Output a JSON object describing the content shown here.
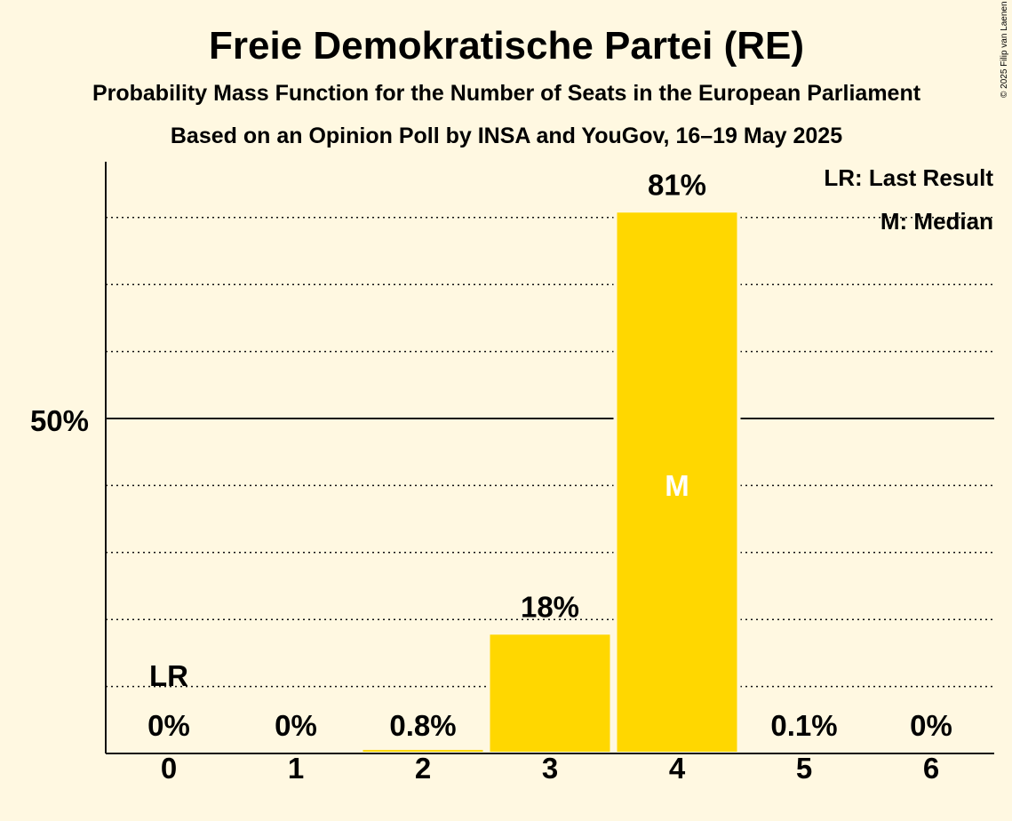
{
  "chart_data": {
    "type": "bar",
    "title": "Freie Demokratische Partei (RE)",
    "subtitle": "Probability Mass Function for the Number of Seats in the European Parliament",
    "subtitle2": "Based on an Opinion Poll by INSA and YouGov, 16–19 May 2025",
    "categories": [
      "0",
      "1",
      "2",
      "3",
      "4",
      "5",
      "6"
    ],
    "values": [
      0,
      0,
      0.8,
      18,
      81,
      0.1,
      0
    ],
    "value_labels": [
      "0%",
      "0%",
      "0.8%",
      "18%",
      "81%",
      "0.1%",
      "0%"
    ],
    "ylim": [
      0,
      88
    ],
    "y_tick_label": "50%",
    "y_tick_value": 50,
    "gridlines": [
      10,
      20,
      30,
      40,
      60,
      70,
      80
    ],
    "last_result_label": "LR",
    "last_result_category": "0",
    "median_label": "M",
    "median_category": "4",
    "legend": [
      "LR: Last Result",
      "M: Median"
    ],
    "legend_position": "top-right",
    "bar_color": "#ffd700",
    "background_color": "#fff8e1",
    "copyright": "© 2025 Filip van Laenen"
  }
}
